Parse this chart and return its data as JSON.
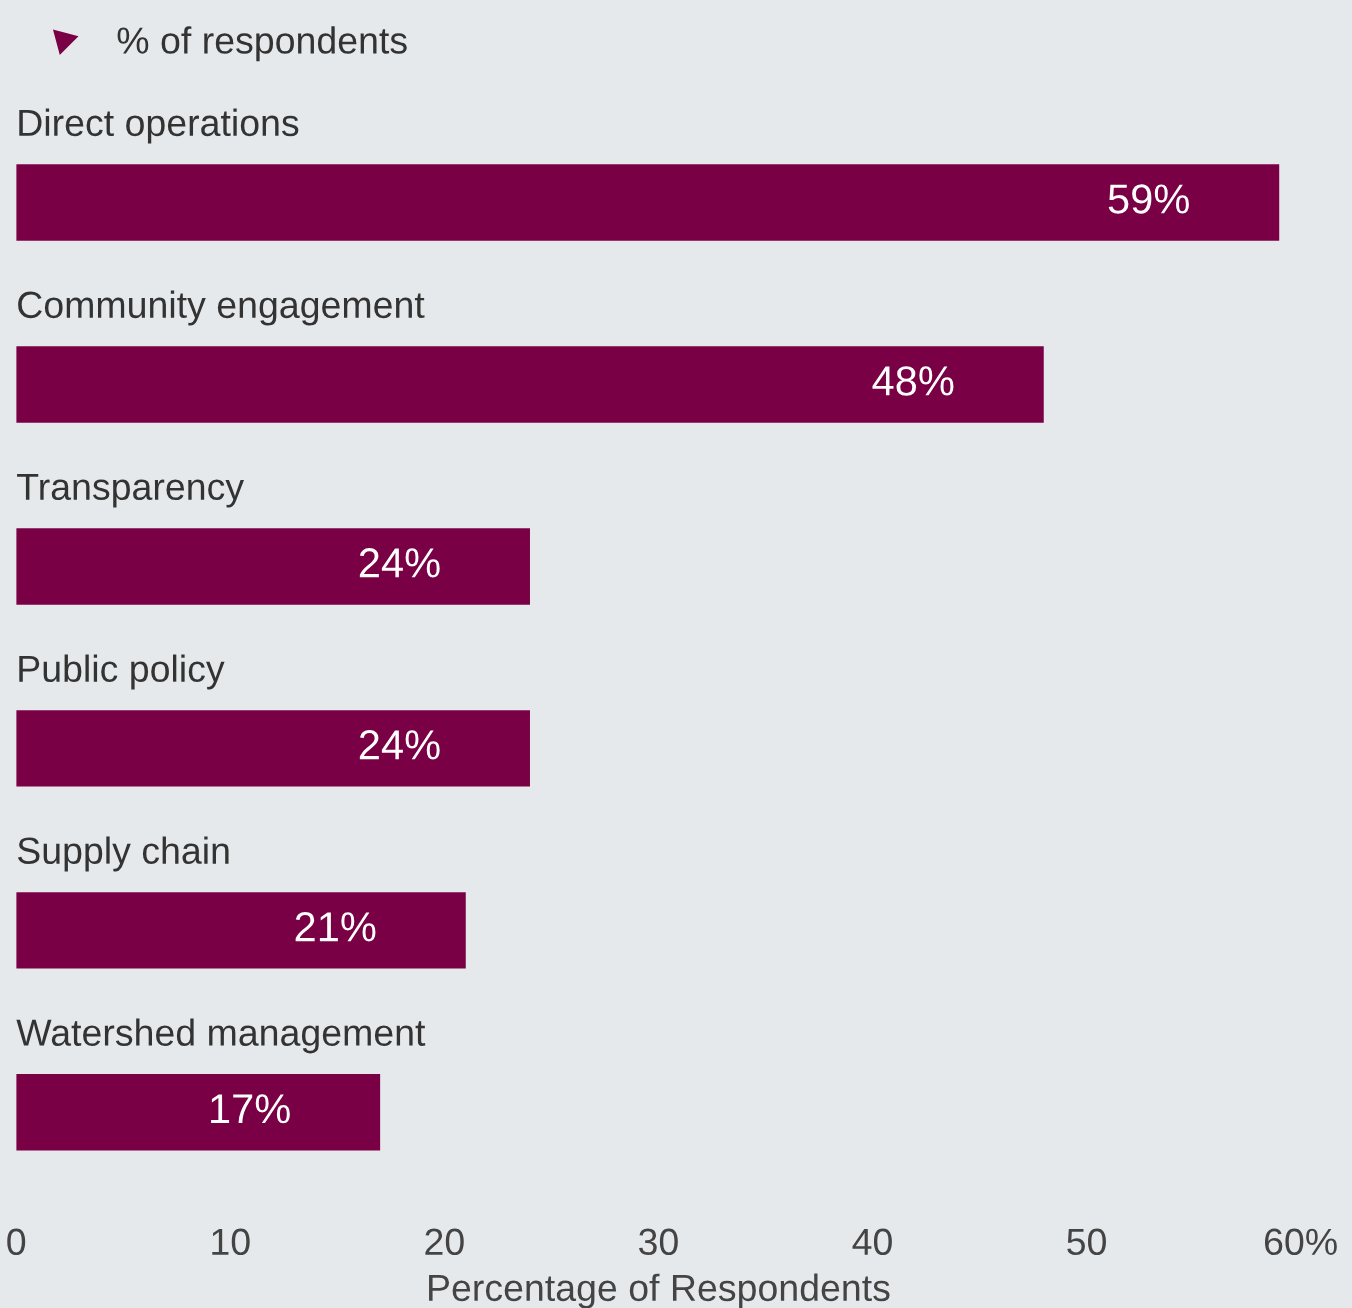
{
  "chart_data": {
    "type": "bar",
    "orientation": "horizontal",
    "xlabel": "Percentage of Respondents",
    "categories": [
      "Direct operations",
      "Community engagement",
      "Transparency",
      "Public policy",
      "Supply chain",
      "Watershed management"
    ],
    "series": [
      {
        "name": "% of respondents",
        "color": "#7a0045",
        "values": [
          59,
          48,
          24,
          24,
          21,
          17
        ],
        "value_labels": [
          "59%",
          "48%",
          "24%",
          "24%",
          "21%",
          "17%"
        ]
      }
    ],
    "xlim": [
      0,
      60
    ],
    "xticks": [
      0,
      10,
      20,
      30,
      40,
      50,
      {
        "value": 60,
        "label": "60%"
      }
    ],
    "grid": false,
    "legend": "top left"
  }
}
